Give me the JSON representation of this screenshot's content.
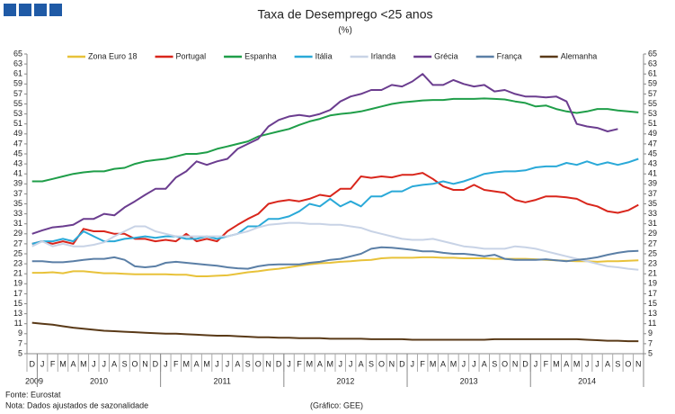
{
  "chart_data": {
    "type": "line",
    "title": "Taxa de Desemprego <25 anos",
    "subtitle": "(%)",
    "categories": [
      "D",
      "J",
      "F",
      "M",
      "A",
      "M",
      "J",
      "J",
      "A",
      "S",
      "O",
      "N",
      "D",
      "J",
      "F",
      "M",
      "A",
      "M",
      "J",
      "J",
      "A",
      "S",
      "O",
      "N",
      "D",
      "J",
      "F",
      "M",
      "A",
      "M",
      "J",
      "J",
      "A",
      "S",
      "O",
      "N",
      "D",
      "J",
      "F",
      "M",
      "A",
      "M",
      "J",
      "J",
      "A",
      "S",
      "O",
      "N",
      "D",
      "J",
      "F",
      "M",
      "A",
      "M",
      "J",
      "J",
      "A",
      "S",
      "O",
      "N"
    ],
    "years": [
      "2009",
      "2010",
      "2011",
      "2012",
      "2013",
      "2014"
    ],
    "ylim": [
      5,
      65
    ],
    "yticks": [
      5,
      7,
      9,
      11,
      13,
      15,
      17,
      19,
      21,
      23,
      25,
      27,
      29,
      31,
      33,
      35,
      37,
      39,
      41,
      43,
      45,
      47,
      49,
      51,
      53,
      55,
      57,
      59,
      61,
      63,
      65
    ],
    "series": [
      {
        "name": "Zona Euro 18",
        "color": "#e8c23a",
        "values": [
          21.2,
          21.2,
          21.3,
          21.1,
          21.5,
          21.5,
          21.3,
          21.1,
          21.1,
          21,
          20.9,
          20.9,
          20.9,
          20.9,
          20.8,
          20.8,
          20.5,
          20.5,
          20.6,
          20.7,
          21,
          21.3,
          21.5,
          21.8,
          22,
          22.3,
          22.6,
          22.9,
          23.1,
          23.2,
          23.4,
          23.5,
          23.7,
          23.8,
          24.1,
          24.2,
          24.2,
          24.2,
          24.3,
          24.3,
          24.2,
          24.2,
          24.1,
          24.1,
          24.1,
          24,
          24,
          24,
          24,
          23.9,
          23.8,
          23.7,
          23.6,
          23.5,
          23.5,
          23.4,
          23.5,
          23.5,
          23.6,
          23.7
        ]
      },
      {
        "name": "Portugal",
        "color": "#d9261c",
        "values": [
          27,
          27.5,
          27,
          27.5,
          27,
          30,
          29.5,
          29.5,
          29,
          29,
          28,
          28,
          27.5,
          27.8,
          27.5,
          29,
          27.5,
          28,
          27.5,
          29.5,
          30.8,
          32,
          33,
          35,
          35.5,
          35.8,
          35.5,
          36,
          36.8,
          36.5,
          38,
          38,
          40.5,
          40.2,
          40.5,
          40.3,
          40.8,
          40.8,
          41.2,
          40,
          38.5,
          37.8,
          37.8,
          38.8,
          37.8,
          37.5,
          37.2,
          35.8,
          35.3,
          35.8,
          36.5,
          36.5,
          36.3,
          36,
          35,
          34.5,
          33.5,
          33.2,
          33.7,
          34.8
        ]
      },
      {
        "name": "Espanha",
        "color": "#1f9e49",
        "values": [
          39.5,
          39.5,
          40,
          40.5,
          41,
          41.3,
          41.5,
          41.5,
          42,
          42.2,
          43,
          43.5,
          43.8,
          44,
          44.5,
          45,
          45,
          45.3,
          46,
          46.5,
          47,
          47.5,
          48.5,
          49,
          49.5,
          50,
          50.8,
          51.5,
          52,
          52.7,
          53,
          53.2,
          53.5,
          54,
          54.5,
          55,
          55.3,
          55.5,
          55.7,
          55.8,
          55.8,
          56,
          56,
          56,
          56.1,
          56,
          55.9,
          55.5,
          55.2,
          54.5,
          54.7,
          54,
          53.5,
          53.2,
          53.5,
          54,
          54,
          53.7,
          53.5,
          53.3
        ]
      },
      {
        "name": "Itália",
        "color": "#2aa9d8",
        "values": [
          27,
          27.5,
          27.5,
          28,
          27.5,
          29.5,
          28.5,
          27.5,
          27.5,
          28,
          28.2,
          28.5,
          28.2,
          28.5,
          28.5,
          28,
          28,
          28.5,
          28,
          28.5,
          29,
          30.5,
          30.5,
          32,
          32,
          32.5,
          33.5,
          35,
          34.5,
          36,
          34.5,
          35.5,
          34.5,
          36.5,
          36.5,
          37.5,
          37.5,
          38.5,
          38.8,
          39,
          39.5,
          39,
          39.5,
          40.2,
          41,
          41.3,
          41.5,
          41.5,
          41.7,
          42.3,
          42.5,
          42.5,
          43.2,
          42.8,
          43.5,
          42.8,
          43.3,
          42.8,
          43.3,
          44
        ]
      },
      {
        "name": "Irlanda",
        "color": "#c8d3e6",
        "values": [
          26.5,
          27.5,
          26.5,
          27,
          26.5,
          26.5,
          26.8,
          27.3,
          28.5,
          29.5,
          30.5,
          30.5,
          29.5,
          29,
          28.5,
          28.5,
          28.5,
          28.5,
          28.5,
          28.5,
          29,
          29.5,
          30.3,
          30.8,
          31,
          31.2,
          31.2,
          31,
          31,
          30.8,
          30.8,
          30.5,
          30.2,
          29.5,
          29,
          28.5,
          28,
          27.8,
          27.8,
          28,
          27.5,
          27,
          26.5,
          26.3,
          26,
          26,
          26,
          26.5,
          26.3,
          26,
          25.5,
          25,
          24.5,
          24,
          23.5,
          23,
          22.5,
          22.3,
          22,
          21.8
        ]
      },
      {
        "name": "Grécia",
        "color": "#6b3d8f",
        "values": [
          29,
          29.7,
          30.3,
          30.5,
          30.8,
          32,
          32,
          33,
          32.7,
          34.3,
          35.5,
          36.8,
          38,
          38,
          40.3,
          41.5,
          43.5,
          42.8,
          43.5,
          44,
          46,
          47,
          48,
          50.5,
          51.8,
          52.5,
          52.8,
          52.5,
          53,
          53.8,
          55.5,
          56.5,
          57,
          57.8,
          57.8,
          58.8,
          58.5,
          59.5,
          61,
          58.8,
          58.8,
          59.8,
          59,
          58.5,
          58.8,
          57.5,
          57.8,
          57,
          56.5,
          56.5,
          56.3,
          56.5,
          55.5,
          51,
          50.5,
          50.2,
          49.5,
          50,
          null,
          null
        ]
      },
      {
        "name": "França",
        "color": "#5b7fa6",
        "values": [
          23.5,
          23.5,
          23.3,
          23.3,
          23.5,
          23.8,
          24,
          24,
          24.3,
          23.8,
          22.5,
          22.3,
          22.5,
          23.2,
          23.4,
          23.2,
          23,
          22.8,
          22.6,
          22.3,
          22.1,
          22,
          22.5,
          22.8,
          22.9,
          22.9,
          22.9,
          23.2,
          23.4,
          23.8,
          24,
          24.5,
          25,
          26,
          26.3,
          26.2,
          26,
          25.8,
          25.5,
          25.5,
          25.2,
          25,
          25,
          24.8,
          24.5,
          24.8,
          24,
          23.8,
          23.8,
          23.8,
          23.9,
          23.7,
          23.5,
          23.8,
          24,
          24.3,
          24.8,
          25.2,
          25.5,
          25.6
        ]
      },
      {
        "name": "Alemanha",
        "color": "#5a3a18",
        "values": [
          11.2,
          11,
          10.8,
          10.5,
          10.2,
          10,
          9.8,
          9.6,
          9.5,
          9.4,
          9.3,
          9.2,
          9.1,
          9,
          9,
          8.9,
          8.8,
          8.7,
          8.6,
          8.6,
          8.5,
          8.4,
          8.3,
          8.3,
          8.2,
          8.2,
          8.1,
          8.1,
          8.1,
          8,
          8,
          8,
          8,
          7.9,
          7.9,
          7.9,
          7.9,
          7.8,
          7.8,
          7.8,
          7.8,
          7.8,
          7.8,
          7.8,
          7.8,
          7.9,
          7.9,
          7.9,
          7.9,
          7.9,
          7.9,
          7.9,
          7.9,
          7.9,
          7.8,
          7.7,
          7.6,
          7.6,
          7.5,
          7.5
        ]
      }
    ],
    "source": "Fonte: Eurostat",
    "note": "Nota: Dados ajustados de sazonalidade",
    "credit": "(Gráfico: GEE)"
  }
}
